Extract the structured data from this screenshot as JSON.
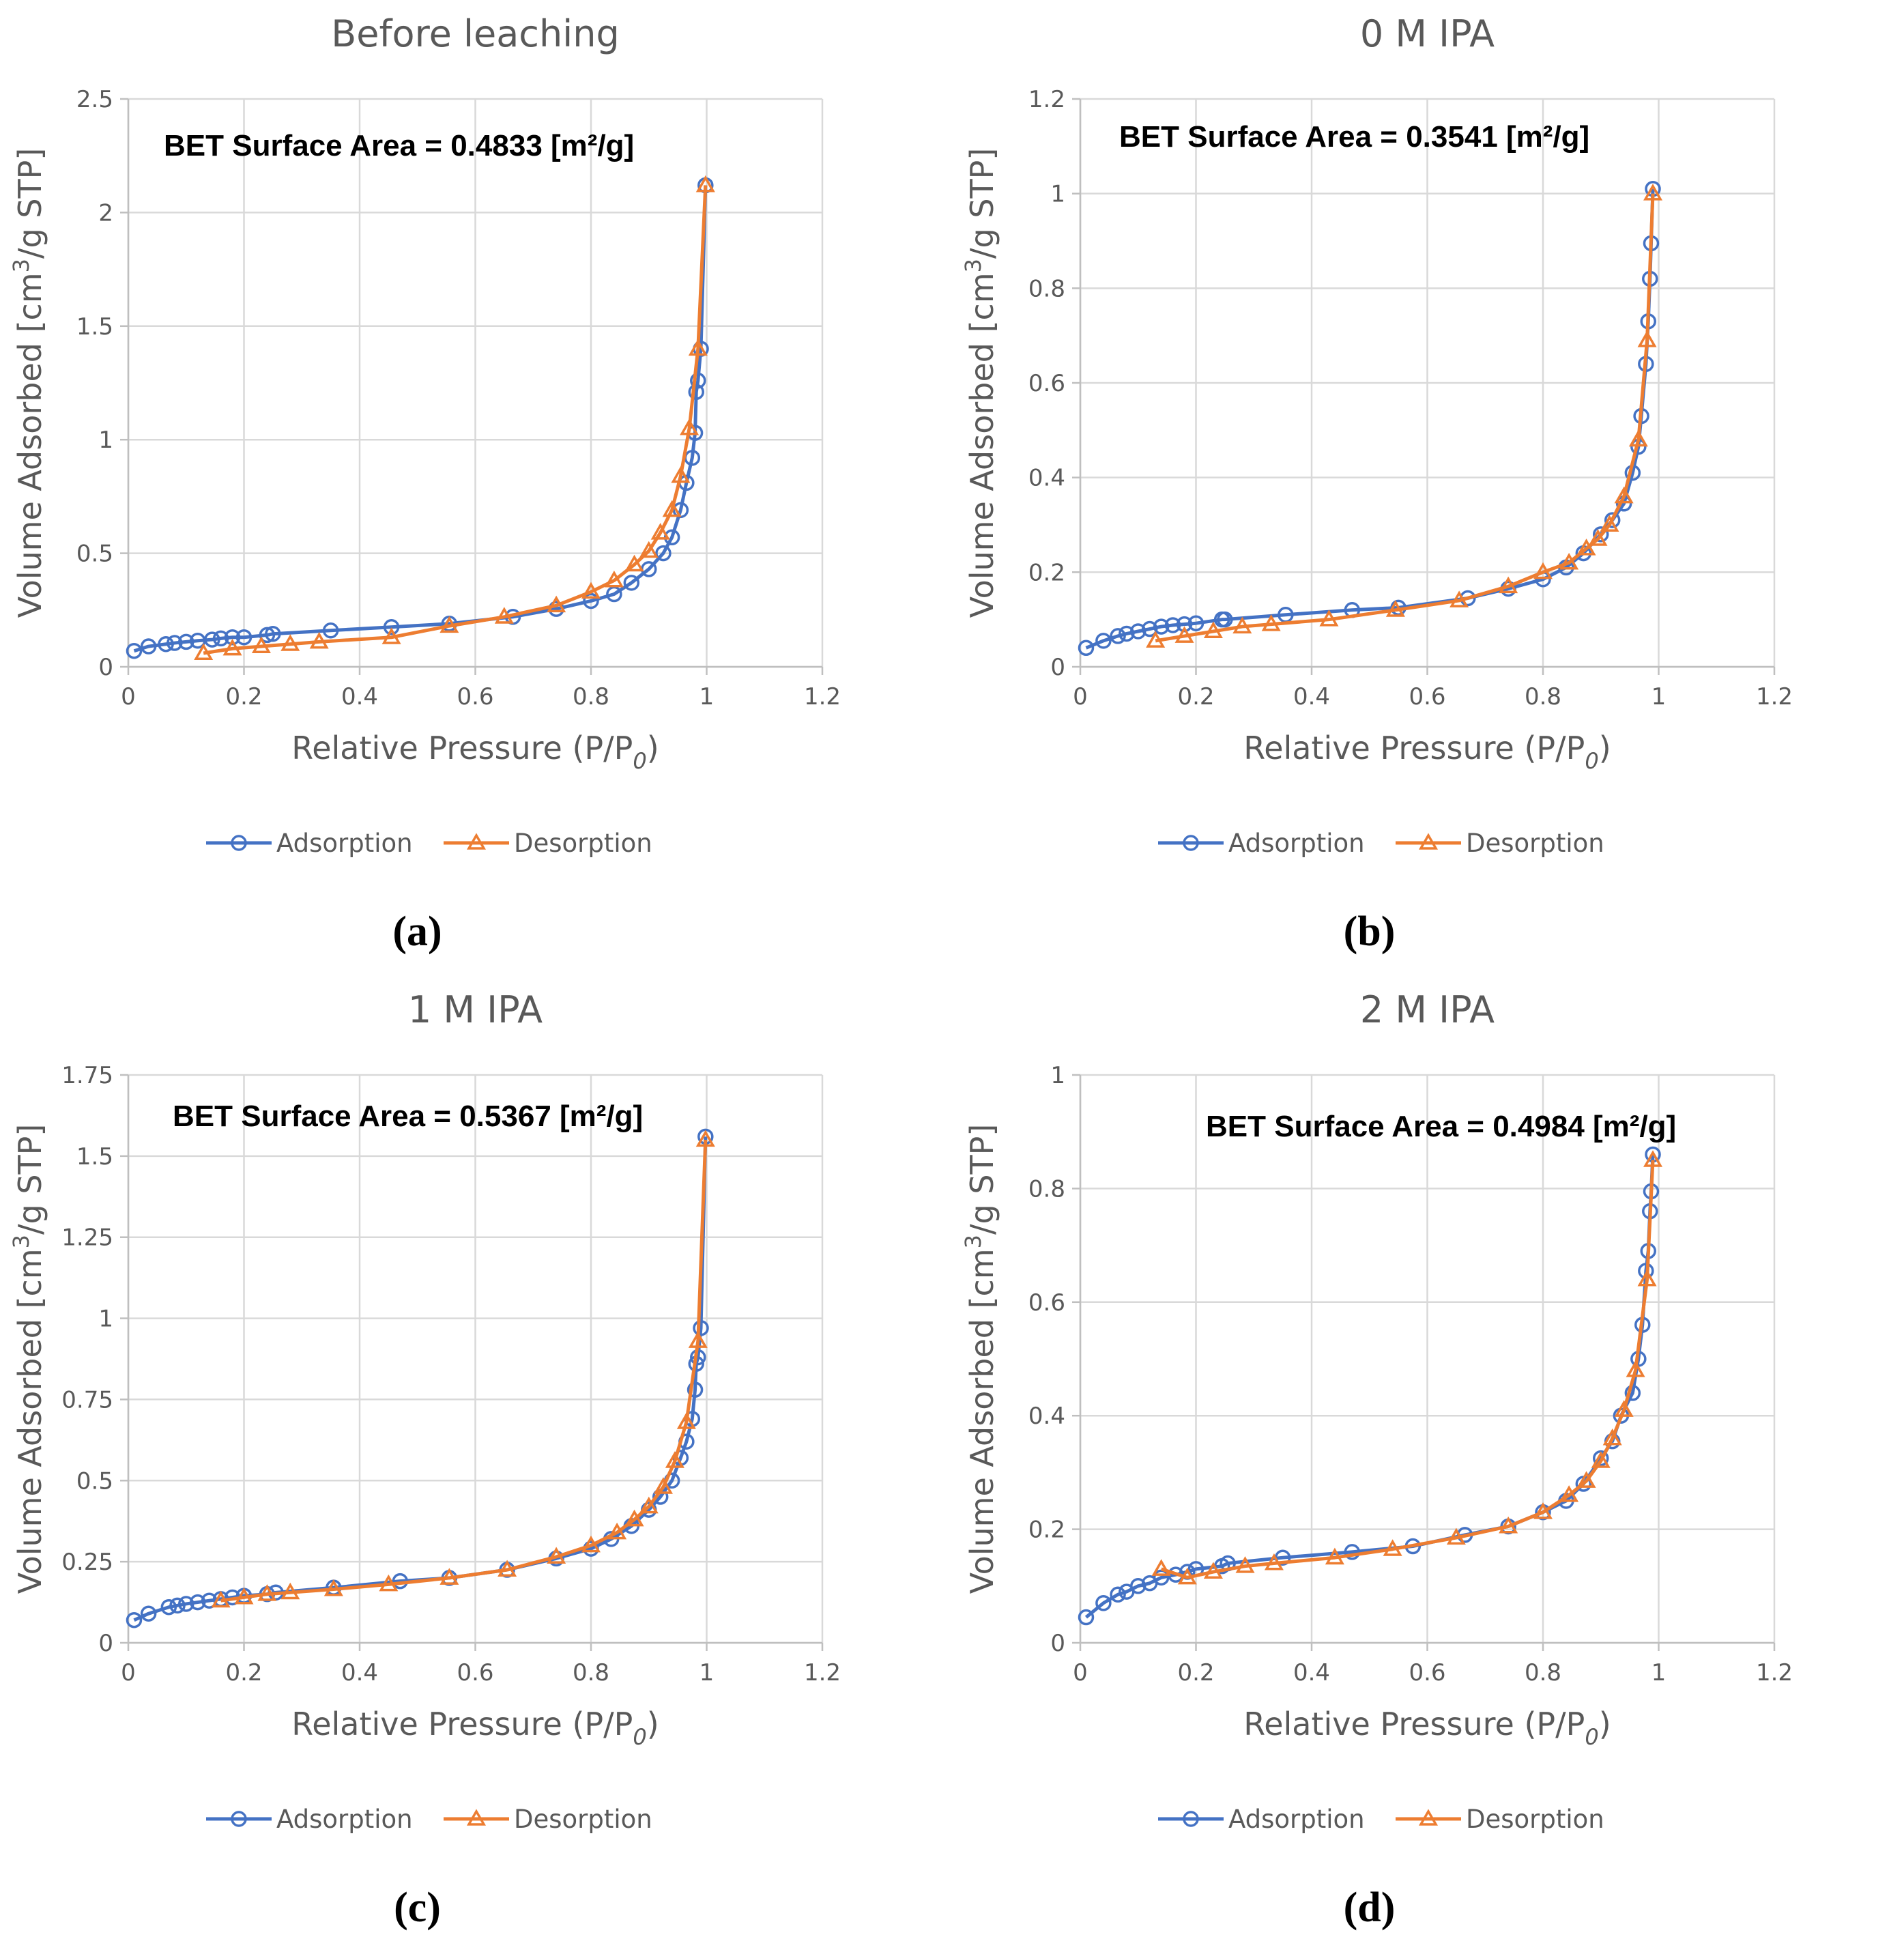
{
  "colors": {
    "adsorption": "#4472C4",
    "desorption": "#ED7D31",
    "grid": "#D9D9D9",
    "text": "#595959"
  },
  "legend": {
    "adsorption_label": "Adsorption",
    "desorption_label": "Desorption"
  },
  "chart_data": [
    {
      "type": "line",
      "caption": "(a)",
      "title": "Before leaching",
      "annotation": "BET Surface Area = 0.4833 [m²/g]",
      "xlabel": "Relative Pressure (P/P",
      "xlabel_sub": "0",
      "xlabel_end": ")",
      "ylabel": "Volume Adsorbed [cm",
      "ylabel_sup": "3",
      "ylabel_end": "/g STP]",
      "xlim": [
        0,
        1.2
      ],
      "ylim": [
        0,
        2.5
      ],
      "xticks": [
        "0",
        "0.2",
        "0.4",
        "0.6",
        "0.8",
        "1",
        "1.2"
      ],
      "yticks": [
        "0",
        "0.5",
        "1",
        "1.5",
        "2",
        "2.5"
      ],
      "series": [
        {
          "name": "Adsorption",
          "marker": "circle",
          "x": [
            0.01,
            0.035,
            0.065,
            0.08,
            0.1,
            0.12,
            0.145,
            0.16,
            0.18,
            0.2,
            0.24,
            0.25,
            0.35,
            0.455,
            0.555,
            0.665,
            0.74,
            0.8,
            0.84,
            0.87,
            0.9,
            0.925,
            0.94,
            0.955,
            0.965,
            0.975,
            0.98,
            0.982,
            0.985,
            0.99,
            0.998
          ],
          "y": [
            0.07,
            0.09,
            0.1,
            0.105,
            0.11,
            0.115,
            0.12,
            0.125,
            0.13,
            0.13,
            0.14,
            0.145,
            0.16,
            0.175,
            0.19,
            0.22,
            0.255,
            0.29,
            0.32,
            0.37,
            0.43,
            0.5,
            0.57,
            0.69,
            0.81,
            0.92,
            1.03,
            1.21,
            1.26,
            1.4,
            2.12
          ]
        },
        {
          "name": "Desorption",
          "marker": "triangle",
          "x": [
            0.998,
            0.985,
            0.97,
            0.955,
            0.94,
            0.92,
            0.9,
            0.875,
            0.84,
            0.8,
            0.74,
            0.65,
            0.555,
            0.455,
            0.33,
            0.28,
            0.23,
            0.18,
            0.13
          ],
          "y": [
            2.12,
            1.4,
            1.05,
            0.84,
            0.69,
            0.59,
            0.51,
            0.45,
            0.38,
            0.33,
            0.27,
            0.22,
            0.18,
            0.13,
            0.11,
            0.1,
            0.09,
            0.08,
            0.06
          ]
        }
      ]
    },
    {
      "type": "line",
      "caption": "(b)",
      "title": "0 M IPA",
      "annotation": "BET Surface Area = 0.3541 [m²/g]",
      "xlabel": "Relative Pressure (P/P",
      "xlabel_sub": "0",
      "xlabel_end": ")",
      "ylabel": "Volume Adsorbed [cm",
      "ylabel_sup": "3",
      "ylabel_end": "/g STP]",
      "xlim": [
        0,
        1.2
      ],
      "ylim": [
        0,
        1.2
      ],
      "xticks": [
        "0",
        "0.2",
        "0.4",
        "0.6",
        "0.8",
        "1",
        "1.2"
      ],
      "yticks": [
        "0",
        "0.2",
        "0.4",
        "0.6",
        "0.8",
        "1",
        "1.2"
      ],
      "series": [
        {
          "name": "Adsorption",
          "marker": "circle",
          "x": [
            0.01,
            0.04,
            0.065,
            0.08,
            0.1,
            0.12,
            0.14,
            0.16,
            0.18,
            0.2,
            0.245,
            0.25,
            0.355,
            0.47,
            0.55,
            0.67,
            0.74,
            0.8,
            0.84,
            0.87,
            0.9,
            0.92,
            0.94,
            0.955,
            0.965,
            0.97,
            0.978,
            0.982,
            0.985,
            0.987,
            0.99
          ],
          "y": [
            0.04,
            0.055,
            0.065,
            0.07,
            0.075,
            0.08,
            0.085,
            0.088,
            0.09,
            0.092,
            0.1,
            0.1,
            0.11,
            0.12,
            0.125,
            0.145,
            0.165,
            0.185,
            0.21,
            0.24,
            0.28,
            0.31,
            0.345,
            0.41,
            0.465,
            0.53,
            0.64,
            0.73,
            0.82,
            0.895,
            1.01
          ]
        },
        {
          "name": "Desorption",
          "marker": "triangle",
          "x": [
            0.99,
            0.98,
            0.965,
            0.94,
            0.915,
            0.895,
            0.875,
            0.845,
            0.8,
            0.74,
            0.655,
            0.545,
            0.43,
            0.33,
            0.28,
            0.23,
            0.18,
            0.13
          ],
          "y": [
            1.0,
            0.69,
            0.48,
            0.36,
            0.3,
            0.27,
            0.25,
            0.22,
            0.2,
            0.17,
            0.14,
            0.12,
            0.1,
            0.09,
            0.085,
            0.075,
            0.065,
            0.055
          ]
        }
      ]
    },
    {
      "type": "line",
      "caption": "(c)",
      "title": "1 M IPA",
      "annotation": "BET Surface Area = 0.5367 [m²/g]",
      "xlabel": "Relative Pressure (P/P",
      "xlabel_sub": "0",
      "xlabel_end": ")",
      "ylabel": "Volume Adsorbed [cm",
      "ylabel_sup": "3",
      "ylabel_end": "/g STP]",
      "xlim": [
        0,
        1.2
      ],
      "ylim": [
        0,
        1.75
      ],
      "xticks": [
        "0",
        "0.2",
        "0.4",
        "0.6",
        "0.8",
        "1",
        "1.2"
      ],
      "yticks": [
        "0",
        "0.25",
        "0.5",
        "0.75",
        "1",
        "1.25",
        "1.5",
        "1.75"
      ],
      "series": [
        {
          "name": "Adsorption",
          "marker": "circle",
          "x": [
            0.01,
            0.035,
            0.07,
            0.085,
            0.1,
            0.12,
            0.14,
            0.16,
            0.18,
            0.2,
            0.24,
            0.255,
            0.355,
            0.47,
            0.555,
            0.655,
            0.74,
            0.8,
            0.835,
            0.87,
            0.9,
            0.92,
            0.94,
            0.955,
            0.965,
            0.975,
            0.98,
            0.982,
            0.985,
            0.99,
            0.998
          ],
          "y": [
            0.07,
            0.09,
            0.11,
            0.115,
            0.12,
            0.125,
            0.13,
            0.135,
            0.14,
            0.145,
            0.15,
            0.155,
            0.17,
            0.19,
            0.2,
            0.225,
            0.26,
            0.29,
            0.32,
            0.36,
            0.41,
            0.45,
            0.5,
            0.57,
            0.62,
            0.69,
            0.78,
            0.86,
            0.88,
            0.97,
            1.56
          ]
        },
        {
          "name": "Desorption",
          "marker": "triangle",
          "x": [
            0.998,
            0.985,
            0.965,
            0.945,
            0.925,
            0.9,
            0.875,
            0.845,
            0.8,
            0.74,
            0.655,
            0.555,
            0.45,
            0.355,
            0.28,
            0.24,
            0.2,
            0.16
          ],
          "y": [
            1.55,
            0.93,
            0.68,
            0.56,
            0.48,
            0.42,
            0.38,
            0.34,
            0.3,
            0.265,
            0.225,
            0.2,
            0.18,
            0.165,
            0.155,
            0.15,
            0.14,
            0.13
          ]
        }
      ]
    },
    {
      "type": "line",
      "caption": "(d)",
      "title": "2 M IPA",
      "annotation": "BET Surface Area = 0.4984 [m²/g]",
      "xlabel": "Relative Pressure (P/P",
      "xlabel_sub": "0",
      "xlabel_end": ")",
      "ylabel": "Volume Adsorbed [cm",
      "ylabel_sup": "3",
      "ylabel_end": "/g STP]",
      "xlim": [
        0,
        1.2
      ],
      "ylim": [
        0,
        1
      ],
      "xticks": [
        "0",
        "0.2",
        "0.4",
        "0.6",
        "0.8",
        "1",
        "1.2"
      ],
      "yticks": [
        "0",
        "0.2",
        "0.4",
        "0.6",
        "0.8",
        "1"
      ],
      "series": [
        {
          "name": "Adsorption",
          "marker": "circle",
          "x": [
            0.01,
            0.04,
            0.065,
            0.08,
            0.1,
            0.12,
            0.14,
            0.165,
            0.185,
            0.2,
            0.245,
            0.255,
            0.35,
            0.47,
            0.575,
            0.665,
            0.74,
            0.8,
            0.84,
            0.87,
            0.9,
            0.92,
            0.935,
            0.955,
            0.965,
            0.972,
            0.978,
            0.982,
            0.985,
            0.987,
            0.99
          ],
          "y": [
            0.045,
            0.07,
            0.085,
            0.09,
            0.1,
            0.105,
            0.115,
            0.12,
            0.125,
            0.13,
            0.135,
            0.14,
            0.15,
            0.16,
            0.17,
            0.19,
            0.205,
            0.23,
            0.25,
            0.28,
            0.325,
            0.355,
            0.4,
            0.44,
            0.5,
            0.56,
            0.655,
            0.69,
            0.76,
            0.795,
            0.86
          ]
        },
        {
          "name": "Desorption",
          "marker": "triangle",
          "x": [
            0.99,
            0.98,
            0.96,
            0.94,
            0.92,
            0.9,
            0.875,
            0.845,
            0.8,
            0.74,
            0.65,
            0.54,
            0.44,
            0.335,
            0.285,
            0.23,
            0.185,
            0.14
          ],
          "y": [
            0.85,
            0.64,
            0.48,
            0.41,
            0.36,
            0.32,
            0.285,
            0.26,
            0.23,
            0.205,
            0.185,
            0.165,
            0.15,
            0.14,
            0.135,
            0.125,
            0.115,
            0.13
          ]
        }
      ]
    }
  ]
}
